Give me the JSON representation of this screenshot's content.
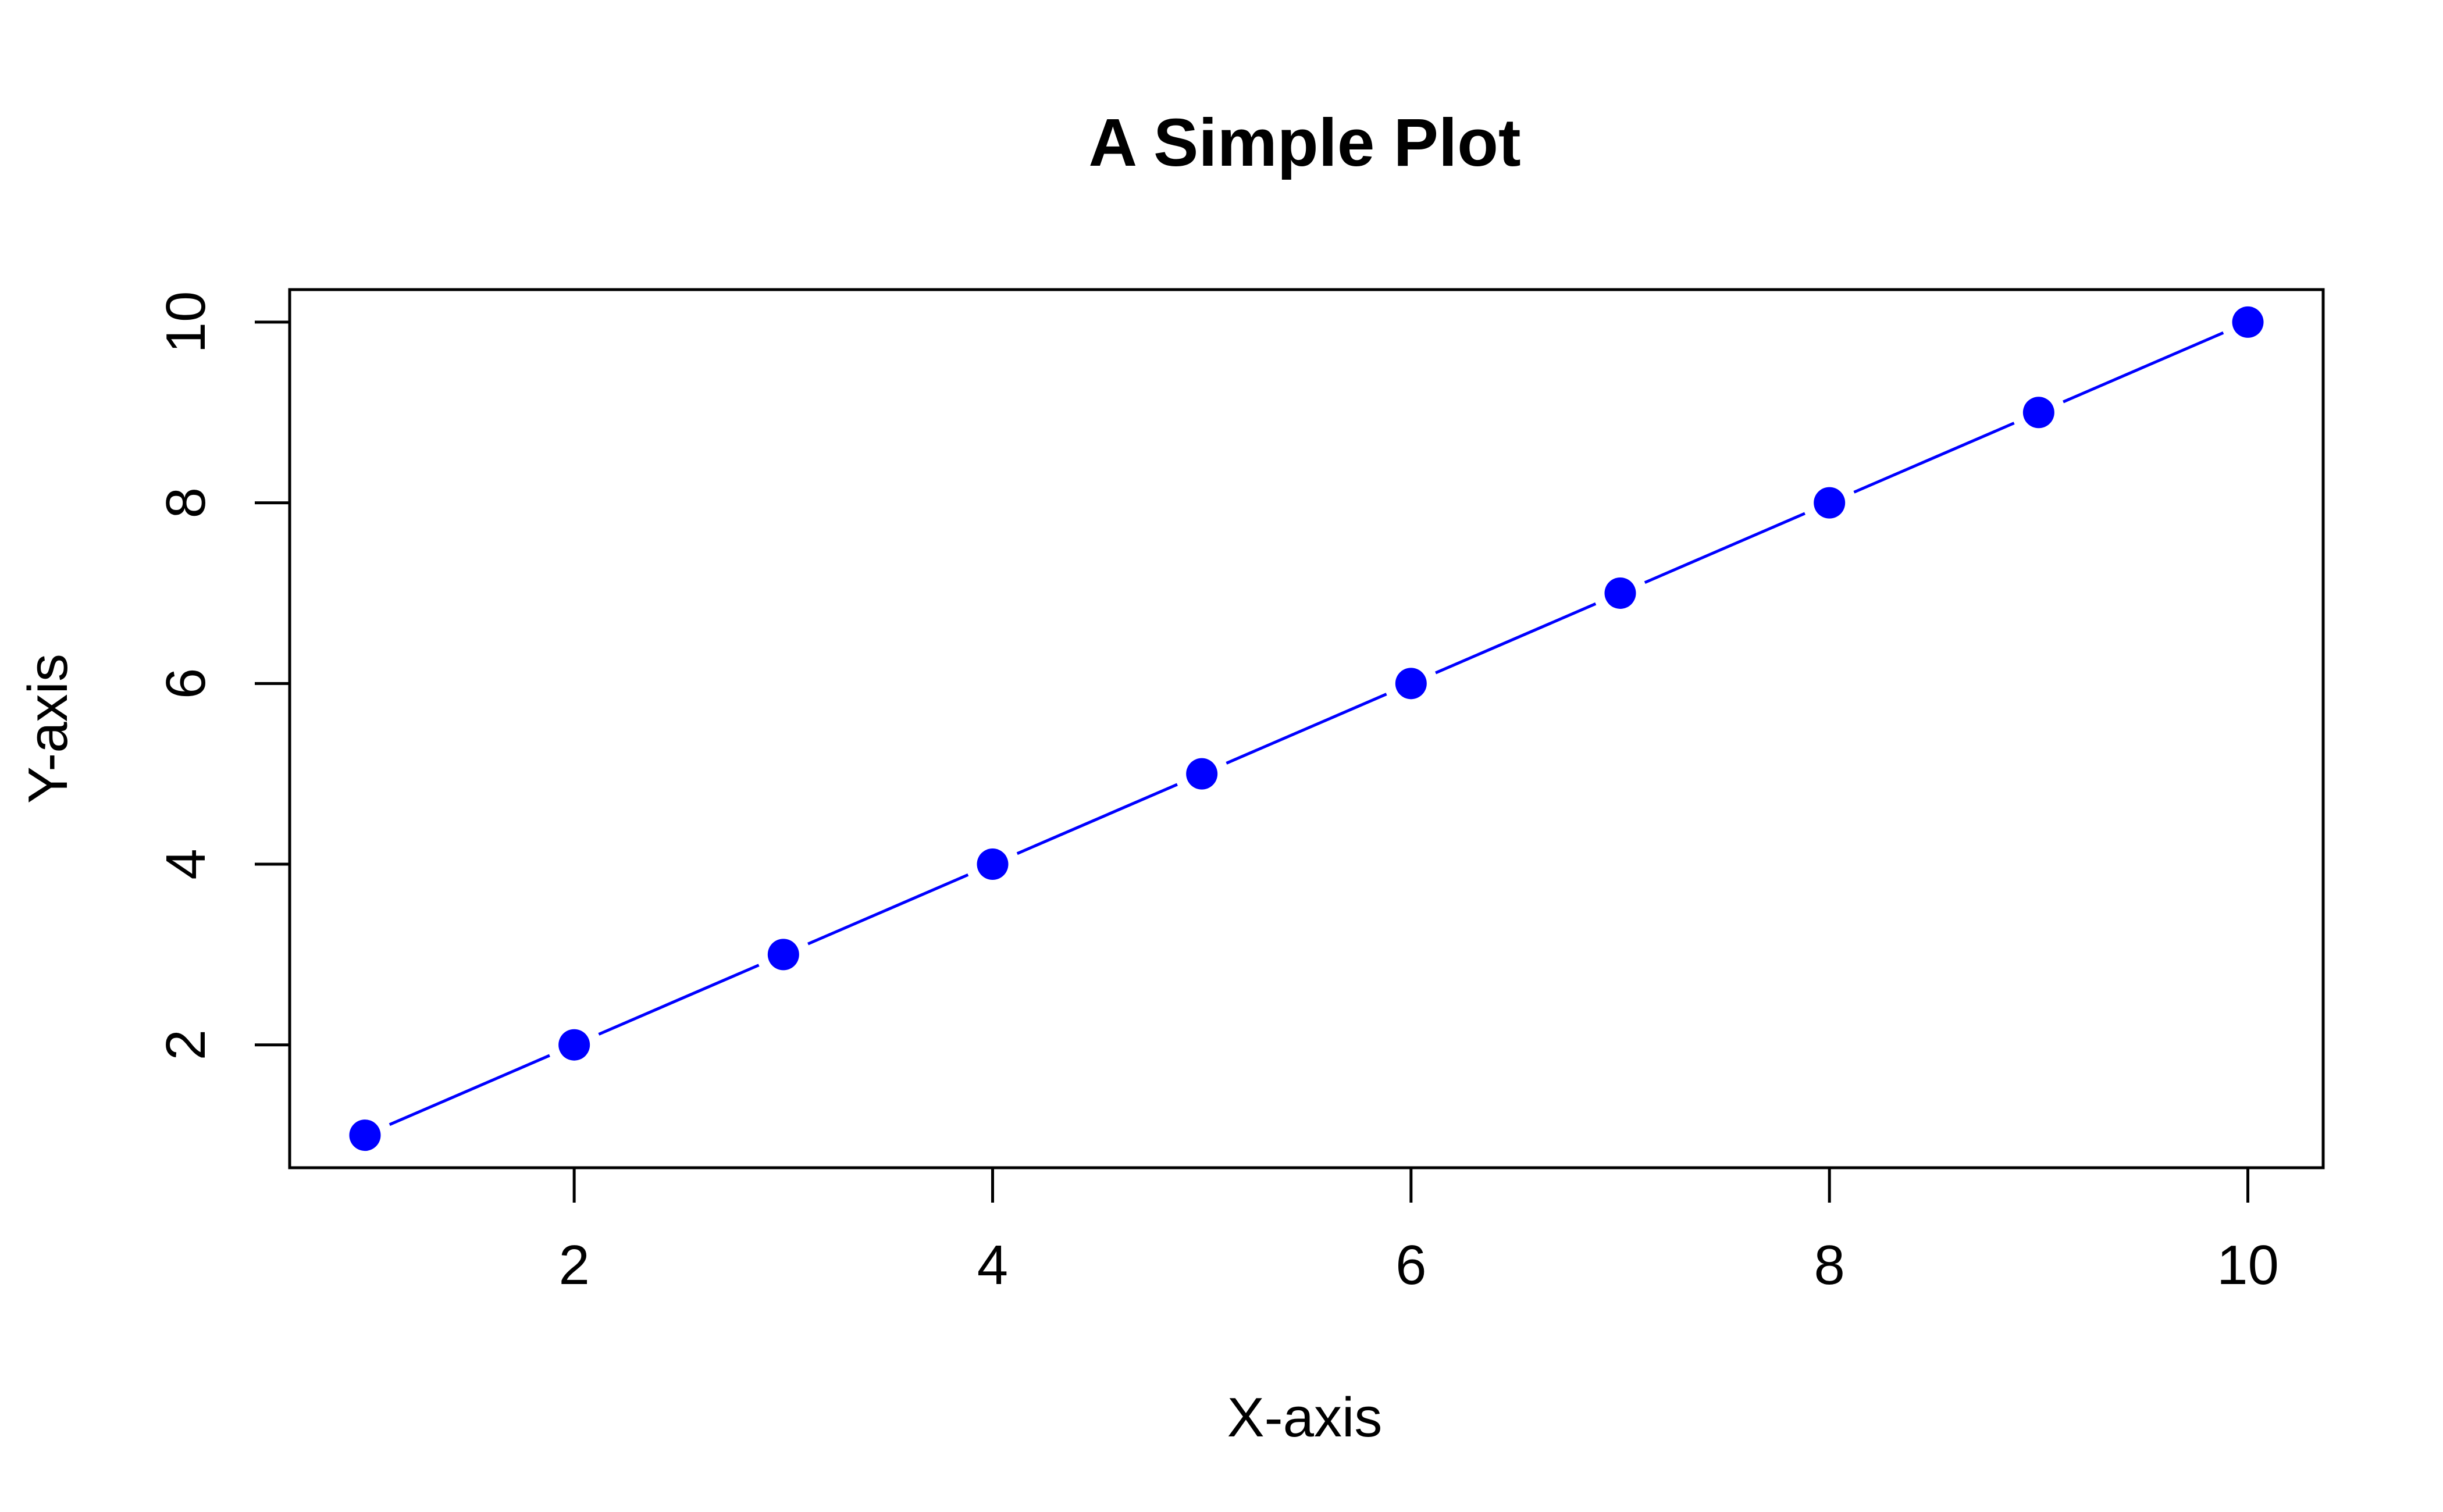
{
  "chart_data": {
    "type": "line",
    "title": "A Simple Plot",
    "xlabel": "X-axis",
    "ylabel": "Y-axis",
    "x": [
      1,
      2,
      3,
      4,
      5,
      6,
      7,
      8,
      9,
      10
    ],
    "series": [
      {
        "values": [
          1,
          2,
          3,
          4,
          5,
          6,
          7,
          8,
          9,
          10
        ],
        "color": "#0000ff",
        "style": "line-with-points"
      }
    ],
    "xlim": [
      0.64,
      10.36
    ],
    "ylim": [
      0.64,
      10.36
    ],
    "xticks": [
      2,
      4,
      6,
      8,
      10
    ],
    "yticks": [
      2,
      4,
      6,
      8,
      10
    ],
    "x_tick_labels": [
      "2",
      "4",
      "6",
      "8",
      "10"
    ],
    "y_tick_labels": [
      "2",
      "4",
      "6",
      "8",
      "10"
    ],
    "grid": false,
    "legend": "none",
    "colors": {
      "series": "#0000ff",
      "axes": "#000000",
      "background": "#ffffff"
    }
  }
}
